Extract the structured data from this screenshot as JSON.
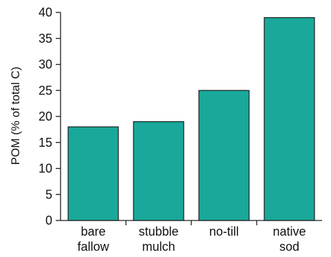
{
  "chart_data": {
    "type": "bar",
    "categories": [
      [
        "bare",
        "fallow"
      ],
      [
        "stubble",
        "mulch"
      ],
      [
        "no-till"
      ],
      [
        "native",
        "sod"
      ]
    ],
    "values": [
      18,
      19,
      25,
      39
    ],
    "title": "",
    "xlabel": "",
    "ylabel": "POM (% of total C)",
    "ylim": [
      0,
      40
    ],
    "yticks": [
      0,
      5,
      10,
      15,
      20,
      25,
      30,
      35,
      40
    ],
    "grid": false,
    "bar_color": "#1aa89a",
    "bar_edge_color": "#1a1a1a"
  }
}
